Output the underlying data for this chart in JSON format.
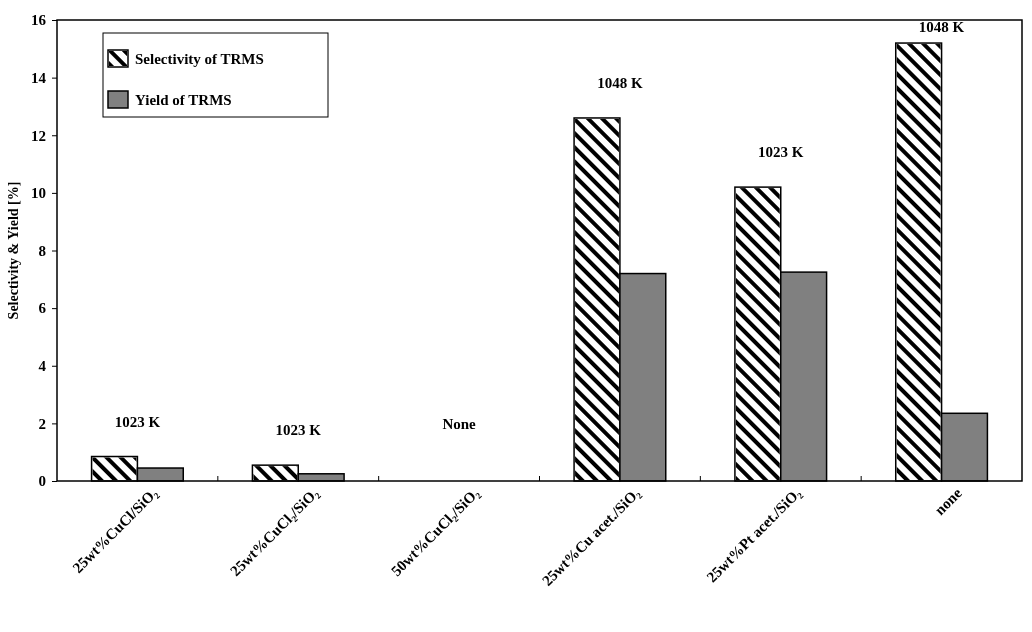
{
  "chart_data": {
    "type": "bar",
    "ylabel": "Selectivity & Yield [%]",
    "categories": [
      "25wt%CuCl/SiO₂",
      "25wt%CuCl₂/SiO₂",
      "50wt%CuCl₂/SiO₂",
      "25wt%Cu acet./SiO₂",
      "25wt%Pt acet./SiO₂",
      "none"
    ],
    "series": [
      {
        "name": "Selectivity of TRMS",
        "color": "#ffffff",
        "values": [
          0.85,
          0.55,
          null,
          12.6,
          10.2,
          15.2
        ]
      },
      {
        "name": "Yield of TRMS",
        "color": "#808080",
        "values": [
          0.45,
          0.25,
          null,
          7.2,
          7.25,
          2.35
        ]
      }
    ],
    "ylim": [
      0,
      16
    ],
    "yticks": [
      0,
      2,
      4,
      6,
      8,
      10,
      12,
      14,
      16
    ],
    "grid": false,
    "legend": "top left",
    "annotations": [
      "1023 K",
      "1023 K",
      "None",
      "1048 K",
      "1023 K",
      "1048 K"
    ]
  }
}
